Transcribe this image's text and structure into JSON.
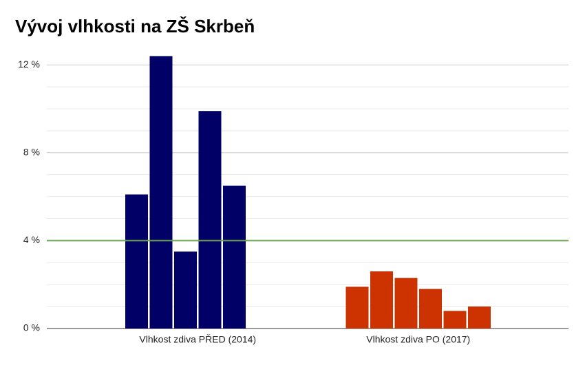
{
  "chart_data": {
    "type": "bar",
    "title": "Vývoj vlhkosti na ZŠ Skrbeň",
    "groups": [
      {
        "category": "Vlhkost zdiva PŘED (2014)",
        "color": "#000066",
        "values": [
          6.1,
          12.4,
          3.5,
          9.9,
          6.5
        ]
      },
      {
        "category": "Vlhkost zdiva PO (2017)",
        "color": "#cc3300",
        "values": [
          1.9,
          2.6,
          2.3,
          1.8,
          0.8,
          1.0
        ]
      }
    ],
    "ylim": [
      0,
      12.5
    ],
    "yticks": [
      {
        "value": 0,
        "label": "0 %"
      },
      {
        "value": 4,
        "label": "4 %"
      },
      {
        "value": 8,
        "label": "8 %"
      },
      {
        "value": 12,
        "label": "12 %"
      }
    ],
    "minor_yticks": [
      1,
      2,
      3,
      5,
      6,
      7,
      9,
      10,
      11
    ],
    "reference_line": {
      "value": 4,
      "color": "#6aa84f"
    },
    "grid": true
  }
}
